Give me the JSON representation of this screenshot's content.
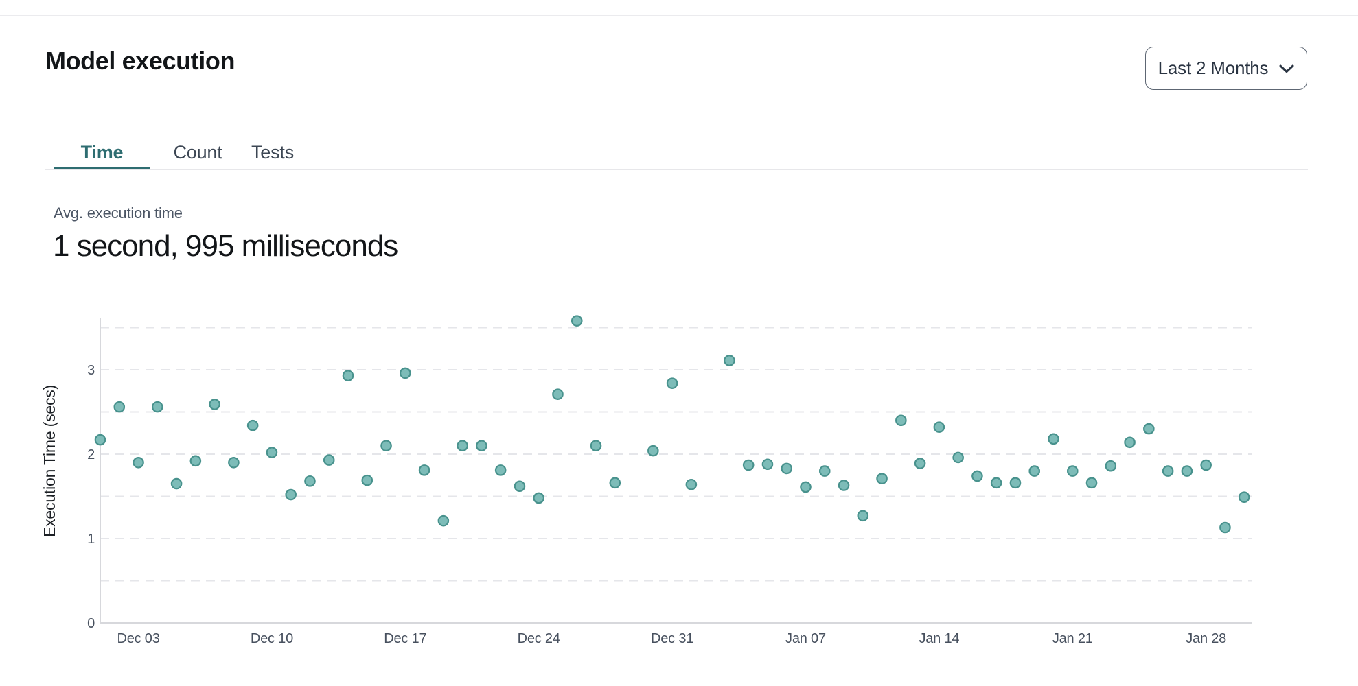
{
  "header": {
    "title": "Model execution",
    "range_selector": {
      "label": "Last 2 Months"
    }
  },
  "tabs": [
    {
      "label": "Time",
      "active": true
    },
    {
      "label": "Count",
      "active": false
    },
    {
      "label": "Tests",
      "active": false
    }
  ],
  "kpi": {
    "label": "Avg. execution time",
    "value": "1 second, 995 milliseconds"
  },
  "chart_data": {
    "type": "scatter",
    "title": "",
    "xlabel": "",
    "ylabel": "Execution Time (secs)",
    "yticks": [
      0,
      1,
      2,
      3
    ],
    "ylim": [
      0,
      3.61
    ],
    "grid": "horizontal dashed lines every 0.5",
    "legend": "none",
    "marker_color": "#7dbcb8",
    "marker_stroke": "#48928d",
    "axis_color": "#d7d8dc",
    "grid_color": "#e5e6ea",
    "tick_color": "#47505e",
    "xticks": [
      {
        "i": 2,
        "label": "Dec 03"
      },
      {
        "i": 9,
        "label": "Dec 10"
      },
      {
        "i": 16,
        "label": "Dec 17"
      },
      {
        "i": 23,
        "label": "Dec 24"
      },
      {
        "i": 30,
        "label": "Dec 31"
      },
      {
        "i": 37,
        "label": "Jan 07"
      },
      {
        "i": 44,
        "label": "Jan 14"
      },
      {
        "i": 51,
        "label": "Jan 21"
      },
      {
        "i": 58,
        "label": "Jan 28"
      }
    ],
    "points": [
      {
        "date": "Dec 01",
        "secs": 2.17
      },
      {
        "date": "Dec 02",
        "secs": 2.56
      },
      {
        "date": "Dec 03",
        "secs": 1.9
      },
      {
        "date": "Dec 04",
        "secs": 2.56
      },
      {
        "date": "Dec 05",
        "secs": 1.65
      },
      {
        "date": "Dec 06",
        "secs": 1.92
      },
      {
        "date": "Dec 07",
        "secs": 2.59
      },
      {
        "date": "Dec 08",
        "secs": 1.9
      },
      {
        "date": "Dec 09",
        "secs": 2.34
      },
      {
        "date": "Dec 10",
        "secs": 2.02
      },
      {
        "date": "Dec 11",
        "secs": 1.52
      },
      {
        "date": "Dec 12",
        "secs": 1.68
      },
      {
        "date": "Dec 13",
        "secs": 1.93
      },
      {
        "date": "Dec 14",
        "secs": 2.93
      },
      {
        "date": "Dec 15",
        "secs": 1.69
      },
      {
        "date": "Dec 16",
        "secs": 2.1
      },
      {
        "date": "Dec 17",
        "secs": 2.96
      },
      {
        "date": "Dec 18",
        "secs": 1.81
      },
      {
        "date": "Dec 19",
        "secs": 1.21
      },
      {
        "date": "Dec 20",
        "secs": 2.1
      },
      {
        "date": "Dec 21",
        "secs": 2.1
      },
      {
        "date": "Dec 22",
        "secs": 1.81
      },
      {
        "date": "Dec 23",
        "secs": 1.62
      },
      {
        "date": "Dec 24",
        "secs": 1.48
      },
      {
        "date": "Dec 25",
        "secs": 2.71
      },
      {
        "date": "Dec 26",
        "secs": 3.58
      },
      {
        "date": "Dec 27",
        "secs": 2.1
      },
      {
        "date": "Dec 28",
        "secs": 1.66
      },
      {
        "date": "Dec 29",
        "secs": null
      },
      {
        "date": "Dec 30",
        "secs": 2.04
      },
      {
        "date": "Dec 31",
        "secs": 2.84
      },
      {
        "date": "Jan 01",
        "secs": 1.64
      },
      {
        "date": "Jan 02",
        "secs": null
      },
      {
        "date": "Jan 03",
        "secs": 3.11
      },
      {
        "date": "Jan 04",
        "secs": 1.87
      },
      {
        "date": "Jan 05",
        "secs": 1.88
      },
      {
        "date": "Jan 06",
        "secs": 1.83
      },
      {
        "date": "Jan 07",
        "secs": 1.61
      },
      {
        "date": "Jan 08",
        "secs": 1.8
      },
      {
        "date": "Jan 09",
        "secs": 1.63
      },
      {
        "date": "Jan 10",
        "secs": 1.27
      },
      {
        "date": "Jan 11",
        "secs": 1.71
      },
      {
        "date": "Jan 12",
        "secs": 2.4
      },
      {
        "date": "Jan 13",
        "secs": 1.89
      },
      {
        "date": "Jan 14",
        "secs": 2.32
      },
      {
        "date": "Jan 15",
        "secs": 1.96
      },
      {
        "date": "Jan 16",
        "secs": 1.74
      },
      {
        "date": "Jan 17",
        "secs": 1.66
      },
      {
        "date": "Jan 18",
        "secs": 1.66
      },
      {
        "date": "Jan 19",
        "secs": 1.8
      },
      {
        "date": "Jan 20",
        "secs": 2.18
      },
      {
        "date": "Jan 21",
        "secs": 1.8
      },
      {
        "date": "Jan 22",
        "secs": 1.66
      },
      {
        "date": "Jan 23",
        "secs": 1.86
      },
      {
        "date": "Jan 24",
        "secs": 2.14
      },
      {
        "date": "Jan 25",
        "secs": 2.3
      },
      {
        "date": "Jan 26",
        "secs": 1.8
      },
      {
        "date": "Jan 27",
        "secs": 1.8
      },
      {
        "date": "Jan 28",
        "secs": 1.87
      },
      {
        "date": "Jan 29",
        "secs": 1.13
      },
      {
        "date": "Jan 30",
        "secs": 1.49
      }
    ]
  }
}
